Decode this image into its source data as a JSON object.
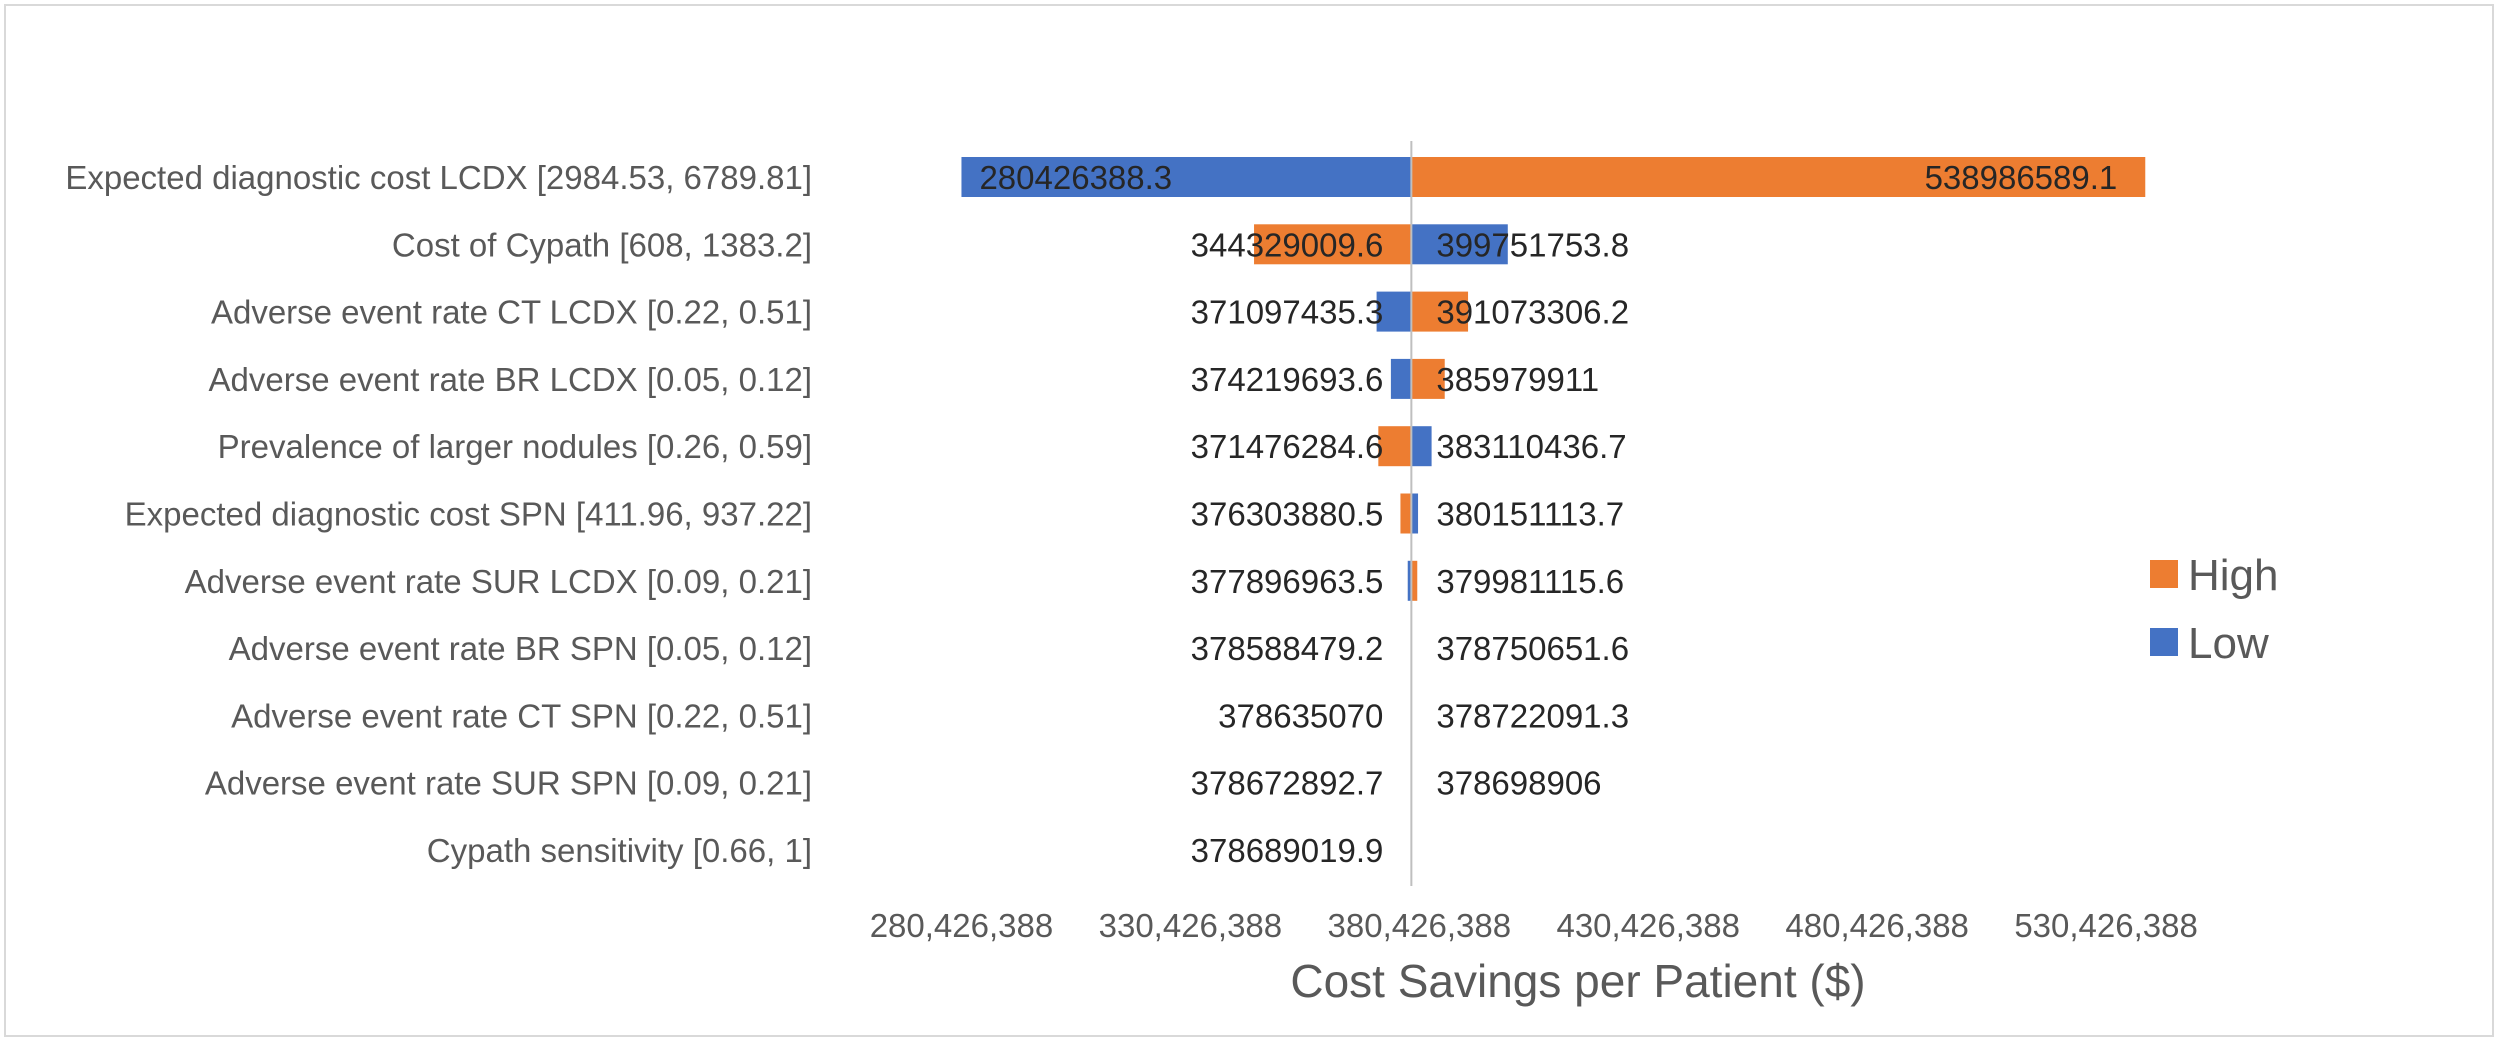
{
  "chart_data": {
    "type": "bar",
    "orientation": "horizontal",
    "variant": "tornado",
    "title": "",
    "xlabel": "Cost Savings per Patient ($)",
    "ylabel": "",
    "baseline": 378689019.9,
    "xlim": [
      255426388,
      580426388
    ],
    "x_ticks": [
      280426388,
      330426388,
      380426388,
      430426388,
      480426388,
      530426388
    ],
    "x_tick_labels": [
      "280,426,388",
      "330,426,388",
      "380,426,388",
      "430,426,388",
      "480,426,388",
      "530,426,388"
    ],
    "legend": {
      "position": "right",
      "entries": [
        "High",
        "Low"
      ]
    },
    "colors": {
      "High": "#ED7D31",
      "Low": "#4472C4",
      "baseline_line": "#bfbfbf"
    },
    "categories": [
      "Expected diagnostic cost LCDX [2984.53, 6789.81]",
      "Cost of Cypath  [608, 1383.2]",
      "Adverse event rate CT LCDX [0.22, 0.51]",
      "Adverse event rate BR LCDX [0.05, 0.12]",
      "Prevalence of larger nodules [0.26, 0.59]",
      "Expected diagnostic cost SPN [411.96, 937.22]",
      "Adverse event rate SUR LCDX [0.09, 0.21]",
      "Adverse event rate BR SPN [0.05, 0.12]",
      "Adverse event rate CT SPN [0.22, 0.51]",
      "Adverse event rate SUR SPN [0.09, 0.21]",
      "Cypath sensitivity  [0.66, 1]"
    ],
    "series": [
      {
        "name": "High",
        "values": [
          538986589.1,
          344329009.6,
          391073306.2,
          385979911,
          371476284.6,
          376303880.5,
          379981115.6,
          378750651.6,
          378722091.3,
          378698906,
          378689019.9
        ],
        "labels": [
          "538986589.1",
          "344329009.6",
          "391073306.2",
          "385979911",
          "",
          "376303880.5",
          "379981115.6",
          "378750651.6",
          "378722091.3",
          "378698906",
          "378689019.9"
        ]
      },
      {
        "name": "Low",
        "values": [
          280426388.3,
          399751753.8,
          371097435.3,
          374219693.6,
          383110436.7,
          380151113.7,
          377896963.5,
          378588479.2,
          378635070,
          378672892.7,
          378689019.9
        ],
        "labels": [
          "280426388.3",
          "399751753.8",
          "371097435.3",
          "374219693.6",
          "383110436.7",
          "380151113.7",
          "377896963.5",
          "378588479.2",
          "378635070",
          "378672892.7",
          ""
        ]
      }
    ],
    "extra_value_labels": [
      {
        "row": 4,
        "text": "371476284.6"
      }
    ]
  }
}
